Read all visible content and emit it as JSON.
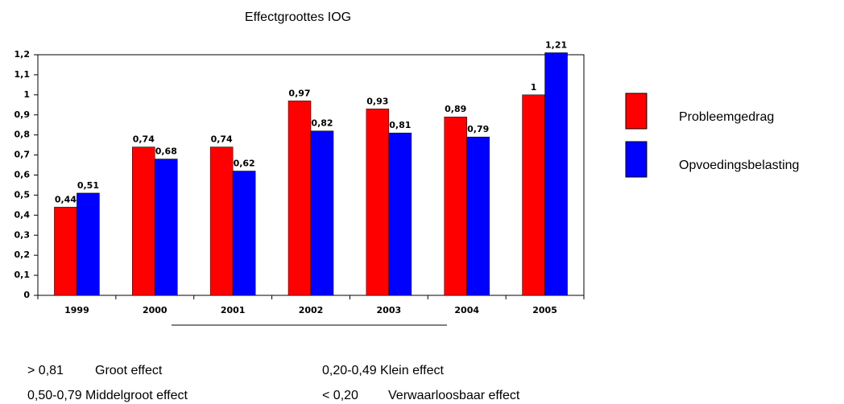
{
  "chart_data": {
    "type": "bar",
    "title": "Effectgroottes IOG",
    "categories": [
      "1999",
      "2000",
      "2001",
      "2002",
      "2003",
      "2004",
      "2005"
    ],
    "series": [
      {
        "name": "Probleemgedrag",
        "color": "#ff0000",
        "values": [
          0.44,
          0.74,
          0.74,
          0.97,
          0.93,
          0.89,
          1
        ],
        "value_labels": [
          "0,44",
          "0,74",
          "0,74",
          "0,97",
          "0,93",
          "0,89",
          "1"
        ]
      },
      {
        "name": "Opvoedingsbelasting",
        "color": "#0000ff",
        "values": [
          0.51,
          0.68,
          0.62,
          0.82,
          0.81,
          0.79,
          1.21
        ],
        "value_labels": [
          "0,51",
          "0,68",
          "0,62",
          "0,82",
          "0,81",
          "0,79",
          "1,21"
        ]
      }
    ],
    "ylim": [
      0,
      1.2
    ],
    "yticks": [
      0,
      {
        "value": 0.1,
        "label": "0,1"
      },
      {
        "value": 0.2,
        "label": "0,2"
      },
      {
        "value": 0.3,
        "label": "0,3"
      },
      {
        "value": 0.4,
        "label": "0,4"
      },
      {
        "value": 0.5,
        "label": "0,5"
      },
      {
        "value": 0.6,
        "label": "0,6"
      },
      {
        "value": 0.7,
        "label": "0,7"
      },
      {
        "value": 0.8,
        "label": "0,8"
      },
      {
        "value": 0.9,
        "label": "0,9"
      },
      1,
      {
        "value": 1.1,
        "label": "1,1"
      },
      {
        "value": 1.2,
        "label": "1,2"
      }
    ],
    "grid": false,
    "legend": "right",
    "notes": [
      "> 0,81",
      "Groot effect",
      "0,20-0,49 Klein effect",
      "0,50-0,79 Middelgroot effect",
      "< 0,20",
      "Verwaarloosbaar effect"
    ]
  }
}
